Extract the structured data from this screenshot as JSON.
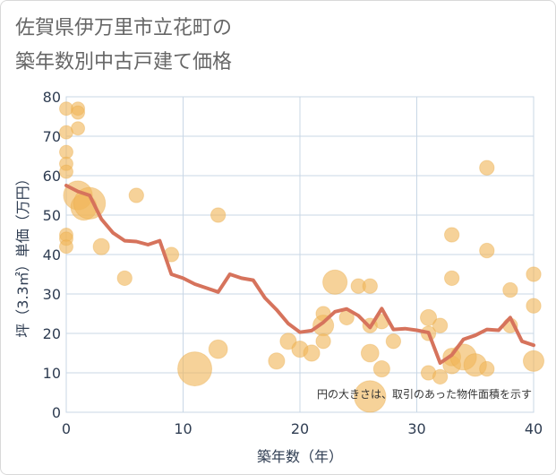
{
  "title": {
    "line1": "佐賀県伊万里市立花町の",
    "line2": "築年数別中古戸建て価格"
  },
  "colors": {
    "bubble": "#f0b75a",
    "bubble_stroke": "#e8a844",
    "line": "#d6735c",
    "grid": "#c9d7e6",
    "axis_text": "#2f3d52",
    "title_text": "#666666"
  },
  "chart_data": {
    "type": "scatter",
    "title": "佐賀県伊万里市立花町の築年数別中古戸建て価格",
    "xlabel": "築年数（年）",
    "ylabel": "坪（3.3㎡）単価（万円）",
    "xlim": [
      0,
      40
    ],
    "ylim": [
      0,
      80
    ],
    "x_ticks": [
      "0",
      "10",
      "20",
      "30",
      "40"
    ],
    "y_ticks": [
      "0",
      "10",
      "20",
      "30",
      "40",
      "50",
      "60",
      "70",
      "80"
    ],
    "grid": true,
    "note": "円の大きさは、取引のあった物件面積を示す",
    "bubbles": [
      {
        "x": 0,
        "y": 77,
        "size": 1
      },
      {
        "x": 0,
        "y": 71,
        "size": 1
      },
      {
        "x": 0,
        "y": 66,
        "size": 1
      },
      {
        "x": 0,
        "y": 63,
        "size": 1
      },
      {
        "x": 0,
        "y": 61,
        "size": 1
      },
      {
        "x": 0,
        "y": 45,
        "size": 1
      },
      {
        "x": 0,
        "y": 44,
        "size": 1
      },
      {
        "x": 0,
        "y": 42,
        "size": 1
      },
      {
        "x": 1,
        "y": 77,
        "size": 1
      },
      {
        "x": 1,
        "y": 76,
        "size": 1
      },
      {
        "x": 1,
        "y": 72,
        "size": 1
      },
      {
        "x": 1,
        "y": 55,
        "size": 5
      },
      {
        "x": 1.5,
        "y": 52,
        "size": 4
      },
      {
        "x": 2,
        "y": 53,
        "size": 6
      },
      {
        "x": 3,
        "y": 42,
        "size": 1.5
      },
      {
        "x": 5,
        "y": 34,
        "size": 1.2
      },
      {
        "x": 6,
        "y": 55,
        "size": 1.2
      },
      {
        "x": 9,
        "y": 40,
        "size": 1.2
      },
      {
        "x": 11,
        "y": 11,
        "size": 7
      },
      {
        "x": 13,
        "y": 50,
        "size": 1.2
      },
      {
        "x": 13,
        "y": 16,
        "size": 2
      },
      {
        "x": 18,
        "y": 13,
        "size": 1.5
      },
      {
        "x": 19,
        "y": 18,
        "size": 1.5
      },
      {
        "x": 20,
        "y": 16,
        "size": 1.5
      },
      {
        "x": 21,
        "y": 15,
        "size": 1.5
      },
      {
        "x": 22,
        "y": 25,
        "size": 1.2
      },
      {
        "x": 22,
        "y": 22,
        "size": 2.5
      },
      {
        "x": 22,
        "y": 18,
        "size": 1.2
      },
      {
        "x": 23,
        "y": 33,
        "size": 3.5
      },
      {
        "x": 24,
        "y": 24,
        "size": 1.2
      },
      {
        "x": 25,
        "y": 32,
        "size": 1.2
      },
      {
        "x": 26,
        "y": 32,
        "size": 1.2
      },
      {
        "x": 26,
        "y": 22,
        "size": 1.2
      },
      {
        "x": 26,
        "y": 15,
        "size": 1.8
      },
      {
        "x": 26,
        "y": 4,
        "size": 6
      },
      {
        "x": 27,
        "y": 23,
        "size": 1.2
      },
      {
        "x": 27,
        "y": 11,
        "size": 1.5
      },
      {
        "x": 28,
        "y": 18,
        "size": 1.2
      },
      {
        "x": 31,
        "y": 24,
        "size": 1.5
      },
      {
        "x": 31,
        "y": 20,
        "size": 1.2
      },
      {
        "x": 31,
        "y": 10,
        "size": 1.2
      },
      {
        "x": 32,
        "y": 22,
        "size": 1.2
      },
      {
        "x": 32,
        "y": 9,
        "size": 1.2
      },
      {
        "x": 33,
        "y": 45,
        "size": 1.2
      },
      {
        "x": 33,
        "y": 34,
        "size": 1.2
      },
      {
        "x": 33,
        "y": 14,
        "size": 1.8
      },
      {
        "x": 33,
        "y": 12,
        "size": 1.8
      },
      {
        "x": 34,
        "y": 14,
        "size": 4
      },
      {
        "x": 35,
        "y": 12,
        "size": 3
      },
      {
        "x": 36,
        "y": 62,
        "size": 1.2
      },
      {
        "x": 36,
        "y": 41,
        "size": 1.2
      },
      {
        "x": 36,
        "y": 11,
        "size": 1.2
      },
      {
        "x": 38,
        "y": 31,
        "size": 1.2
      },
      {
        "x": 38,
        "y": 22,
        "size": 1.2
      },
      {
        "x": 40,
        "y": 35,
        "size": 1.2
      },
      {
        "x": 40,
        "y": 27,
        "size": 1.2
      },
      {
        "x": 40,
        "y": 13,
        "size": 2.5
      }
    ],
    "trend_line": {
      "x": [
        0,
        1,
        2,
        3,
        4,
        5,
        6,
        7,
        8,
        9,
        10,
        11,
        12,
        13,
        14,
        15,
        16,
        17,
        18,
        19,
        20,
        21,
        22,
        23,
        24,
        25,
        26,
        27,
        28,
        29,
        30,
        31,
        32,
        33,
        34,
        35,
        36,
        37,
        38,
        39,
        40
      ],
      "y": [
        57.5,
        56,
        55,
        49,
        45.5,
        43.5,
        43.3,
        42.5,
        43.5,
        35,
        34,
        32.5,
        31.5,
        30.5,
        35,
        34,
        33.5,
        29,
        26,
        22.5,
        20.3,
        20.7,
        22.8,
        25.5,
        26.2,
        24.5,
        21.5,
        26.3,
        21,
        21.2,
        20.8,
        20.2,
        12.5,
        14.5,
        18.5,
        19.5,
        21,
        20.8,
        24,
        18,
        17
      ]
    }
  }
}
